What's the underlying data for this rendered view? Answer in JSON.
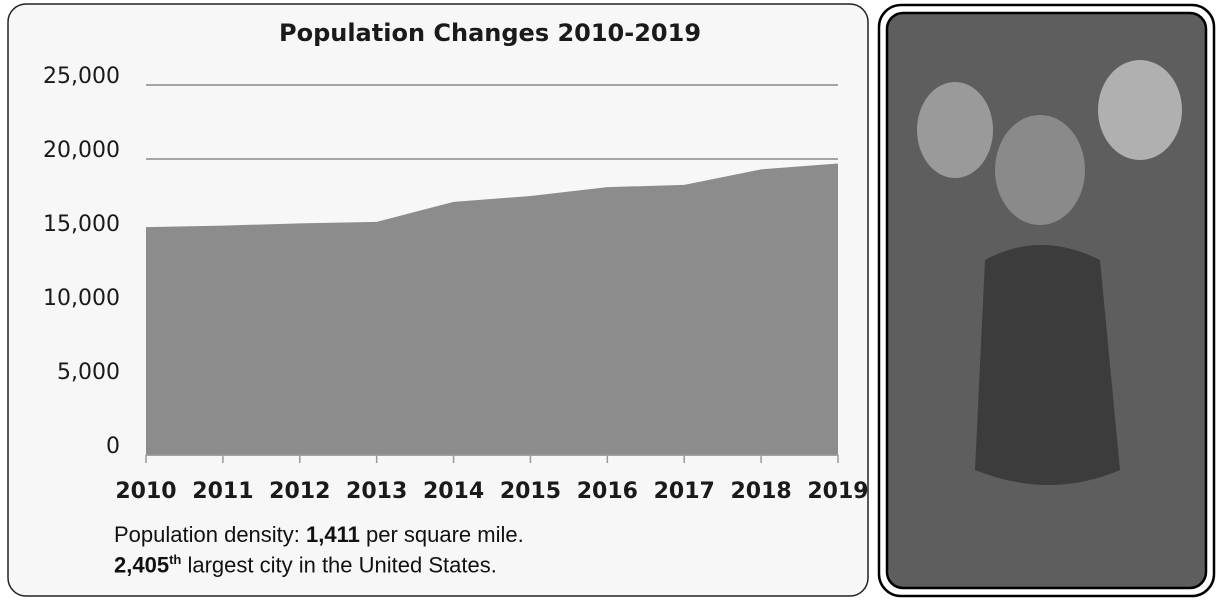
{
  "chart_data": {
    "type": "area",
    "title": "Population Changes 2010-2019",
    "categories": [
      "2010",
      "2011",
      "2012",
      "2013",
      "2014",
      "2015",
      "2016",
      "2017",
      "2018",
      "2019"
    ],
    "values": [
      15400,
      15500,
      15650,
      15750,
      17100,
      17500,
      18100,
      18250,
      19300,
      19700
    ],
    "color": "#8c8c8c",
    "ylim": [
      0,
      25000
    ],
    "yticks": [
      0,
      {
        "value": 5000,
        "label": "5,000"
      },
      {
        "value": 10000,
        "label": "10,000"
      },
      {
        "value": 15000,
        "label": "15,000"
      },
      {
        "value": 20000,
        "label": "20,000"
      },
      {
        "value": 25000,
        "label": "25,000"
      }
    ],
    "grid": true
  },
  "notes": {
    "density": {
      "prefix": "Population density: ",
      "value": "1,411",
      "suffix": " per square mile."
    },
    "rank": {
      "value": "2,405",
      "sup": "th",
      "suffix": " largest city in the United States."
    }
  }
}
